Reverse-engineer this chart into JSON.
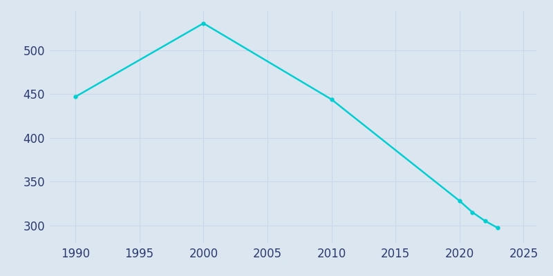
{
  "years": [
    1990,
    2000,
    2010,
    2020,
    2021,
    2022,
    2023
  ],
  "population": [
    447,
    531,
    444,
    328,
    315,
    305,
    297
  ],
  "line_color": "#00CED1",
  "marker": "o",
  "marker_size": 3.5,
  "background_color": "#dce6f0",
  "grid_color": "#c8d8e8",
  "xlim": [
    1988,
    2026
  ],
  "ylim": [
    280,
    545
  ],
  "xticks": [
    1990,
    1995,
    2000,
    2005,
    2010,
    2015,
    2020,
    2025
  ],
  "yticks": [
    300,
    350,
    400,
    450,
    500
  ],
  "tick_label_color": "#2b3a6e",
  "tick_fontsize": 12,
  "linewidth": 1.8
}
